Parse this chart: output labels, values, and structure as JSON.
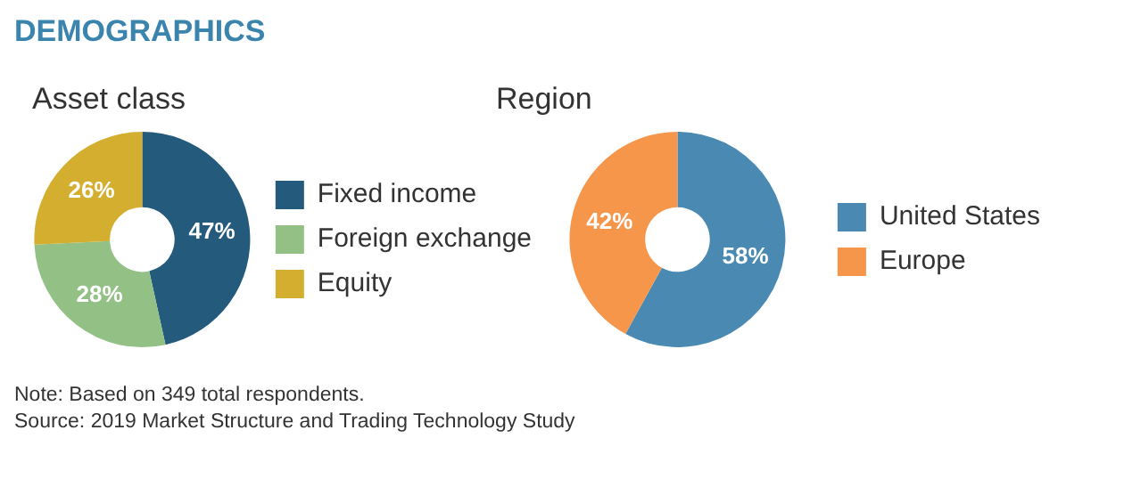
{
  "chart_data": [
    {
      "type": "donut",
      "title": "DEMOGRAPHICS",
      "subtitle": "Asset class",
      "categories": [
        "Fixed income",
        "Foreign exchange",
        "Equity"
      ],
      "values": [
        47,
        28,
        26
      ],
      "value_labels": [
        "47%",
        "28%",
        "26%"
      ],
      "colors": [
        "#245a7b",
        "#93c185",
        "#d3ae2f"
      ],
      "legend": "right",
      "annotations": [
        "Note: Based on 349 total respondents.",
        "Source: 2019 Market Structure and Trading Technology Study"
      ]
    },
    {
      "type": "donut",
      "title": "Region",
      "categories": [
        "United States",
        "Europe"
      ],
      "values": [
        58,
        42
      ],
      "value_labels": [
        "58%",
        "42%"
      ],
      "colors": [
        "#4a89b1",
        "#f5964b"
      ],
      "legend": "right"
    }
  ]
}
